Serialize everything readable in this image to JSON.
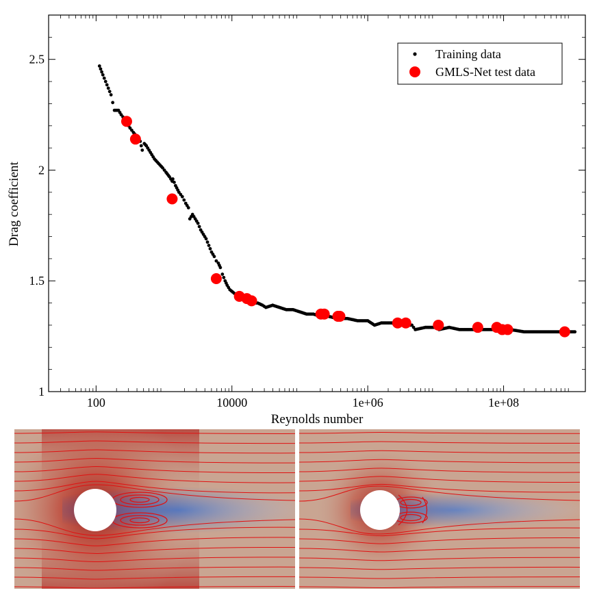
{
  "chart_data": {
    "type": "scatter",
    "xscale": "log10",
    "xlabel": "Reynolds number",
    "ylabel": "Drag coefficient",
    "xlim": [
      20,
      1600000000
    ],
    "ylim": [
      1,
      2.7
    ],
    "xticks": [
      {
        "value": 100,
        "label": "100"
      },
      {
        "value": 10000,
        "label": "10000"
      },
      {
        "value": 1000000,
        "label": "1e+06"
      },
      {
        "value": 100000000,
        "label": "1e+08"
      }
    ],
    "yticks": [
      {
        "value": 1,
        "label": "1"
      },
      {
        "value": 1.5,
        "label": "1.5"
      },
      {
        "value": 2,
        "label": "2"
      },
      {
        "value": 2.5,
        "label": "2.5"
      }
    ],
    "legend": {
      "position": "top-right",
      "entries": [
        {
          "label": "Training data",
          "marker": "small-dot",
          "color": "#000000"
        },
        {
          "label": "GMLS-Net test data",
          "marker": "large-dot",
          "color": "#ff0000"
        }
      ]
    },
    "series": [
      {
        "name": "Training data",
        "color": "#000000",
        "points": [
          [
            2.05,
            2.47
          ],
          [
            2.1,
            2.43
          ],
          [
            2.22,
            2.34
          ],
          [
            2.27,
            2.27
          ],
          [
            2.33,
            2.27
          ],
          [
            2.37,
            2.25
          ],
          [
            2.42,
            2.23
          ],
          [
            2.46,
            2.21
          ],
          [
            2.5,
            2.19
          ],
          [
            2.55,
            2.17
          ],
          [
            2.6,
            2.15
          ],
          [
            2.65,
            2.13
          ],
          [
            2.68,
            2.09
          ],
          [
            2.71,
            2.12
          ],
          [
            2.74,
            2.11
          ],
          [
            2.8,
            2.08
          ],
          [
            2.86,
            2.05
          ],
          [
            2.92,
            2.03
          ],
          [
            2.98,
            2.01
          ],
          [
            3.03,
            1.99
          ],
          [
            3.08,
            1.97
          ],
          [
            3.12,
            1.95
          ],
          [
            3.13,
            1.96
          ],
          [
            3.17,
            1.93
          ],
          [
            3.22,
            1.9
          ],
          [
            3.27,
            1.88
          ],
          [
            3.32,
            1.85
          ],
          [
            3.36,
            1.83
          ],
          [
            3.38,
            1.78
          ],
          [
            3.42,
            1.8
          ],
          [
            3.46,
            1.78
          ],
          [
            3.5,
            1.76
          ],
          [
            3.54,
            1.73
          ],
          [
            3.58,
            1.71
          ],
          [
            3.62,
            1.69
          ],
          [
            3.66,
            1.66
          ],
          [
            3.7,
            1.63
          ],
          [
            3.74,
            1.61
          ],
          [
            3.77,
            1.59
          ],
          [
            3.8,
            1.58
          ],
          [
            3.83,
            1.56
          ],
          [
            3.86,
            1.53
          ],
          [
            3.9,
            1.5
          ],
          [
            3.93,
            1.48
          ],
          [
            3.97,
            1.46
          ],
          [
            4.01,
            1.45
          ],
          [
            4.05,
            1.44
          ],
          [
            4.1,
            1.43
          ],
          [
            4.15,
            1.42
          ],
          [
            4.22,
            1.41
          ],
          [
            4.3,
            1.4
          ],
          [
            4.38,
            1.4
          ],
          [
            4.45,
            1.39
          ],
          [
            4.5,
            1.38
          ],
          [
            4.6,
            1.39
          ],
          [
            4.7,
            1.38
          ],
          [
            4.8,
            1.37
          ],
          [
            4.9,
            1.37
          ],
          [
            5.0,
            1.36
          ],
          [
            5.1,
            1.35
          ],
          [
            5.2,
            1.35
          ],
          [
            5.3,
            1.34
          ],
          [
            5.42,
            1.34
          ],
          [
            5.55,
            1.33
          ],
          [
            5.7,
            1.33
          ],
          [
            5.85,
            1.32
          ],
          [
            6.0,
            1.32
          ],
          [
            6.1,
            1.3
          ],
          [
            6.2,
            1.31
          ],
          [
            6.35,
            1.31
          ],
          [
            6.5,
            1.3
          ],
          [
            6.65,
            1.3
          ],
          [
            6.7,
            1.28
          ],
          [
            6.85,
            1.29
          ],
          [
            7.0,
            1.29
          ],
          [
            7.05,
            1.28
          ],
          [
            7.2,
            1.29
          ],
          [
            7.35,
            1.28
          ],
          [
            7.5,
            1.28
          ],
          [
            7.7,
            1.28
          ],
          [
            7.9,
            1.28
          ],
          [
            8.1,
            1.28
          ],
          [
            8.3,
            1.27
          ],
          [
            8.5,
            1.27
          ],
          [
            8.7,
            1.27
          ],
          [
            8.9,
            1.27
          ],
          [
            9.05,
            1.27
          ]
        ]
      },
      {
        "name": "GMLS-Net test data",
        "color": "#ff0000",
        "points": [
          [
            2.45,
            2.22
          ],
          [
            2.58,
            2.14
          ],
          [
            3.12,
            1.87
          ],
          [
            3.77,
            1.51
          ],
          [
            4.11,
            1.43
          ],
          [
            4.22,
            1.42
          ],
          [
            4.29,
            1.41
          ],
          [
            5.31,
            1.35
          ],
          [
            5.36,
            1.35
          ],
          [
            5.56,
            1.34
          ],
          [
            5.59,
            1.34
          ],
          [
            6.44,
            1.31
          ],
          [
            6.56,
            1.31
          ],
          [
            7.04,
            1.3
          ],
          [
            7.62,
            1.29
          ],
          [
            7.9,
            1.29
          ],
          [
            7.98,
            1.28
          ],
          [
            8.06,
            1.28
          ],
          [
            8.9,
            1.27
          ]
        ]
      }
    ]
  },
  "flow_panels": [
    {
      "name": "flow-field-low-reynolds"
    },
    {
      "name": "flow-field-high-reynolds"
    }
  ]
}
